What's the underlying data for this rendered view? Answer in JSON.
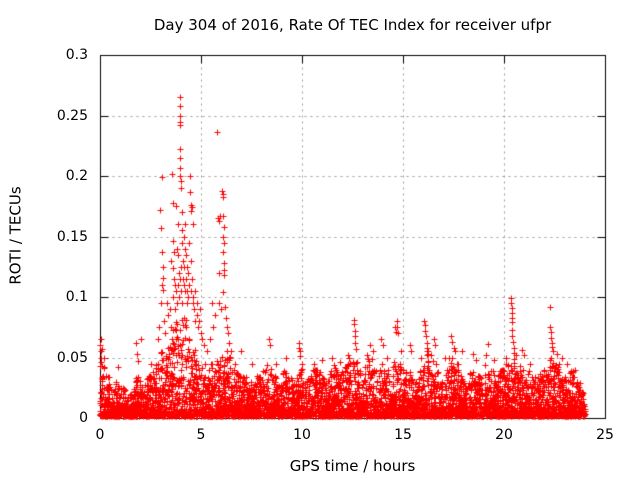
{
  "chart_data": {
    "type": "scatter",
    "title": "Day 304 of 2016, Rate Of TEC Index for receiver ufpr",
    "xlabel": "GPS time / hours",
    "ylabel": "ROTI / TECUs",
    "xlim": [
      0,
      25
    ],
    "ylim": [
      0,
      0.3
    ],
    "xticks": [
      0,
      5,
      10,
      15,
      20,
      25
    ],
    "yticks": [
      0,
      0.05,
      0.1,
      0.15,
      0.2,
      0.25,
      0.3
    ],
    "xtick_labels": [
      "0",
      "5",
      "10",
      "15",
      "20",
      "25"
    ],
    "ytick_labels": [
      "0",
      "0.05",
      "0.1",
      "0.15",
      "0.2",
      "0.25",
      "0.3"
    ],
    "grid": true,
    "grid_color": "#9a9a9a",
    "frame_color": "#000000",
    "marker": "plus",
    "marker_color": "#ff0000",
    "marker_size_px": 7,
    "series_name": "ROTI",
    "data_x_start": 0,
    "data_x_end": 24,
    "base_bin_hours": 0.25,
    "base_envelope": [
      0.05,
      0.035,
      0.025,
      0.03,
      0.025,
      0.022,
      0.025,
      0.035,
      0.028,
      0.035,
      0.04,
      0.045,
      0.055,
      0.06,
      0.075,
      0.085,
      0.085,
      0.07,
      0.06,
      0.05,
      0.045,
      0.04,
      0.045,
      0.05,
      0.055,
      0.06,
      0.045,
      0.04,
      0.038,
      0.03,
      0.03,
      0.035,
      0.04,
      0.045,
      0.035,
      0.03,
      0.04,
      0.035,
      0.03,
      0.045,
      0.03,
      0.035,
      0.04,
      0.04,
      0.035,
      0.04,
      0.045,
      0.04,
      0.045,
      0.05,
      0.05,
      0.04,
      0.045,
      0.05,
      0.04,
      0.045,
      0.04,
      0.035,
      0.05,
      0.045,
      0.04,
      0.045,
      0.03,
      0.04,
      0.055,
      0.05,
      0.045,
      0.03,
      0.04,
      0.05,
      0.045,
      0.035,
      0.03,
      0.04,
      0.035,
      0.035,
      0.045,
      0.04,
      0.035,
      0.04,
      0.045,
      0.055,
      0.045,
      0.05,
      0.04,
      0.035,
      0.035,
      0.04,
      0.04,
      0.05,
      0.045,
      0.04,
      0.035,
      0.04,
      0.03,
      0.022
    ],
    "outliers": [
      [
        0.02,
        0.06
      ],
      [
        0.04,
        0.065
      ],
      [
        0.05,
        0.055
      ],
      [
        0.07,
        0.05
      ],
      [
        0.1,
        0.057
      ],
      [
        0.9,
        0.042
      ],
      [
        1.8,
        0.062
      ],
      [
        1.85,
        0.053
      ],
      [
        1.9,
        0.047
      ],
      [
        2.05,
        0.065
      ],
      [
        2.5,
        0.045
      ],
      [
        2.85,
        0.065
      ],
      [
        2.9,
        0.075
      ],
      [
        2.95,
        0.172
      ],
      [
        3.0,
        0.157
      ],
      [
        3.0,
        0.095
      ],
      [
        3.05,
        0.199
      ],
      [
        3.05,
        0.11
      ],
      [
        3.08,
        0.137
      ],
      [
        3.1,
        0.125
      ],
      [
        3.1,
        0.106
      ],
      [
        3.12,
        0.116
      ],
      [
        3.15,
        0.08
      ],
      [
        3.2,
        0.07
      ],
      [
        3.3,
        0.095
      ],
      [
        3.35,
        0.085
      ],
      [
        3.45,
        0.09
      ],
      [
        3.5,
        0.13
      ],
      [
        3.52,
        0.075
      ],
      [
        3.55,
        0.202
      ],
      [
        3.58,
        0.065
      ],
      [
        3.6,
        0.146
      ],
      [
        3.6,
        0.1
      ],
      [
        3.62,
        0.178
      ],
      [
        3.62,
        0.124
      ],
      [
        3.65,
        0.115
      ],
      [
        3.68,
        0.137
      ],
      [
        3.7,
        0.09
      ],
      [
        3.72,
        0.11
      ],
      [
        3.75,
        0.105
      ],
      [
        3.78,
        0.175
      ],
      [
        3.8,
        0.14
      ],
      [
        3.8,
        0.095
      ],
      [
        3.85,
        0.135
      ],
      [
        3.85,
        0.11
      ],
      [
        3.88,
        0.16
      ],
      [
        3.9,
        0.12
      ],
      [
        3.9,
        0.1
      ],
      [
        3.95,
        0.265
      ],
      [
        3.95,
        0.2
      ],
      [
        3.96,
        0.258
      ],
      [
        3.96,
        0.245
      ],
      [
        3.96,
        0.222
      ],
      [
        3.97,
        0.25
      ],
      [
        3.97,
        0.215
      ],
      [
        3.98,
        0.242
      ],
      [
        3.98,
        0.207
      ],
      [
        3.99,
        0.196
      ],
      [
        3.95,
        0.115
      ],
      [
        4.0,
        0.19
      ],
      [
        4.0,
        0.125
      ],
      [
        4.02,
        0.105
      ],
      [
        4.05,
        0.155
      ],
      [
        4.05,
        0.145
      ],
      [
        4.05,
        0.095
      ],
      [
        4.08,
        0.17
      ],
      [
        4.1,
        0.13
      ],
      [
        4.1,
        0.115
      ],
      [
        4.15,
        0.15
      ],
      [
        4.15,
        0.125
      ],
      [
        4.18,
        0.11
      ],
      [
        4.2,
        0.16
      ],
      [
        4.2,
        0.14
      ],
      [
        4.22,
        0.105
      ],
      [
        4.25,
        0.135
      ],
      [
        4.25,
        0.115
      ],
      [
        4.3,
        0.125
      ],
      [
        4.3,
        0.095
      ],
      [
        4.32,
        0.105
      ],
      [
        4.35,
        0.12
      ],
      [
        4.38,
        0.1
      ],
      [
        4.4,
        0.145
      ],
      [
        4.42,
        0.11
      ],
      [
        4.45,
        0.2
      ],
      [
        4.45,
        0.187
      ],
      [
        4.5,
        0.176
      ],
      [
        4.52,
        0.171
      ],
      [
        4.55,
        0.174
      ],
      [
        4.5,
        0.13
      ],
      [
        4.5,
        0.105
      ],
      [
        4.55,
        0.115
      ],
      [
        4.58,
        0.095
      ],
      [
        4.6,
        0.16
      ],
      [
        4.6,
        0.1
      ],
      [
        4.65,
        0.09
      ],
      [
        4.7,
        0.105
      ],
      [
        4.72,
        0.08
      ],
      [
        4.78,
        0.095
      ],
      [
        4.8,
        0.085
      ],
      [
        4.85,
        0.075
      ],
      [
        4.9,
        0.08
      ],
      [
        4.95,
        0.09
      ],
      [
        5.0,
        0.07
      ],
      [
        5.05,
        0.065
      ],
      [
        5.15,
        0.06
      ],
      [
        5.3,
        0.055
      ],
      [
        5.45,
        0.065
      ],
      [
        5.55,
        0.095
      ],
      [
        5.6,
        0.075
      ],
      [
        5.7,
        0.085
      ],
      [
        5.79,
        0.236
      ],
      [
        5.85,
        0.165
      ],
      [
        5.88,
        0.12
      ],
      [
        5.9,
        0.163
      ],
      [
        5.9,
        0.095
      ],
      [
        5.95,
        0.167
      ],
      [
        5.98,
        0.09
      ],
      [
        6.05,
        0.188
      ],
      [
        6.08,
        0.185
      ],
      [
        6.1,
        0.183
      ],
      [
        6.1,
        0.167
      ],
      [
        6.1,
        0.15
      ],
      [
        6.1,
        0.137
      ],
      [
        6.1,
        0.104
      ],
      [
        6.12,
        0.158
      ],
      [
        6.12,
        0.145
      ],
      [
        6.12,
        0.122
      ],
      [
        6.15,
        0.128
      ],
      [
        6.15,
        0.118
      ],
      [
        6.2,
        0.092
      ],
      [
        6.25,
        0.083
      ],
      [
        6.3,
        0.075
      ],
      [
        6.35,
        0.07
      ],
      [
        6.4,
        0.062
      ],
      [
        6.5,
        0.055
      ],
      [
        7.0,
        0.055
      ],
      [
        7.5,
        0.045
      ],
      [
        8.35,
        0.065
      ],
      [
        8.4,
        0.06
      ],
      [
        8.7,
        0.045
      ],
      [
        9.2,
        0.05
      ],
      [
        9.85,
        0.062
      ],
      [
        9.87,
        0.058
      ],
      [
        9.9,
        0.055
      ],
      [
        9.92,
        0.051
      ],
      [
        10.6,
        0.045
      ],
      [
        11.0,
        0.048
      ],
      [
        11.5,
        0.05
      ],
      [
        11.9,
        0.046
      ],
      [
        12.3,
        0.052
      ],
      [
        12.55,
        0.081
      ],
      [
        12.58,
        0.078
      ],
      [
        12.6,
        0.072
      ],
      [
        12.62,
        0.068
      ],
      [
        12.62,
        0.062
      ],
      [
        12.65,
        0.057
      ],
      [
        13.2,
        0.052
      ],
      [
        13.35,
        0.06
      ],
      [
        13.5,
        0.055
      ],
      [
        13.9,
        0.065
      ],
      [
        14.0,
        0.06
      ],
      [
        14.2,
        0.05
      ],
      [
        14.6,
        0.075
      ],
      [
        14.63,
        0.071
      ],
      [
        14.68,
        0.08
      ],
      [
        14.7,
        0.075
      ],
      [
        14.75,
        0.07
      ],
      [
        14.9,
        0.055
      ],
      [
        15.35,
        0.06
      ],
      [
        15.4,
        0.055
      ],
      [
        15.9,
        0.05
      ],
      [
        16.05,
        0.08
      ],
      [
        16.08,
        0.077
      ],
      [
        16.1,
        0.072
      ],
      [
        16.15,
        0.068
      ],
      [
        16.18,
        0.062
      ],
      [
        16.2,
        0.058
      ],
      [
        16.25,
        0.055
      ],
      [
        16.4,
        0.052
      ],
      [
        16.55,
        0.065
      ],
      [
        16.6,
        0.06
      ],
      [
        17.1,
        0.05
      ],
      [
        17.4,
        0.068
      ],
      [
        17.45,
        0.063
      ],
      [
        17.5,
        0.058
      ],
      [
        17.55,
        0.055
      ],
      [
        17.9,
        0.055
      ],
      [
        18.45,
        0.053
      ],
      [
        18.6,
        0.048
      ],
      [
        19.1,
        0.052
      ],
      [
        19.2,
        0.061
      ],
      [
        19.5,
        0.048
      ],
      [
        20.1,
        0.05
      ],
      [
        20.35,
        0.099
      ],
      [
        20.36,
        0.095
      ],
      [
        20.38,
        0.091
      ],
      [
        20.38,
        0.087
      ],
      [
        20.4,
        0.083
      ],
      [
        20.4,
        0.079
      ],
      [
        20.42,
        0.073
      ],
      [
        20.42,
        0.068
      ],
      [
        20.45,
        0.063
      ],
      [
        20.48,
        0.058
      ],
      [
        20.6,
        0.052
      ],
      [
        20.9,
        0.056
      ],
      [
        21.0,
        0.052
      ],
      [
        21.3,
        0.045
      ],
      [
        22.28,
        0.092
      ],
      [
        22.3,
        0.075
      ],
      [
        22.32,
        0.071
      ],
      [
        22.35,
        0.066
      ],
      [
        22.36,
        0.062
      ],
      [
        22.4,
        0.059
      ],
      [
        22.45,
        0.055
      ],
      [
        22.6,
        0.053
      ],
      [
        22.85,
        0.05
      ],
      [
        23.1,
        0.045
      ],
      [
        23.5,
        0.04
      ]
    ]
  }
}
